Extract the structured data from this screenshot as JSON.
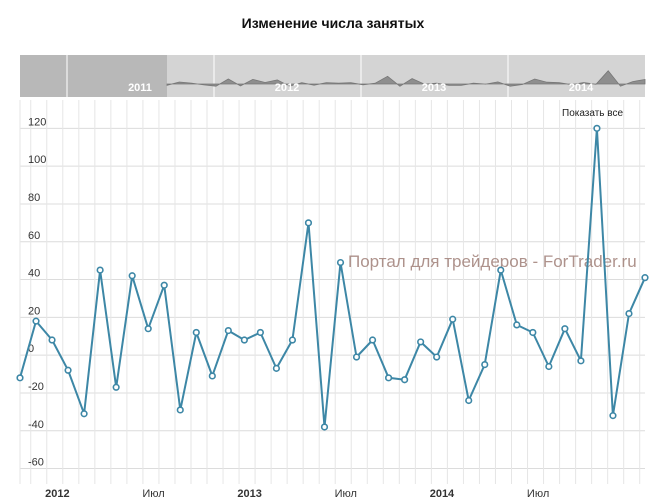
{
  "chart_data": {
    "type": "line",
    "title": "Изменение числа занятых",
    "y_ticks": [
      -60,
      -40,
      -20,
      0,
      20,
      40,
      60,
      80,
      100,
      120
    ],
    "ylim": [
      -65,
      135
    ],
    "x_ticks": [
      {
        "label": "2012",
        "bold": true
      },
      {
        "label": "Июл",
        "bold": false
      },
      {
        "label": "2013",
        "bold": true
      },
      {
        "label": "Июл",
        "bold": false
      },
      {
        "label": "2014",
        "bold": true
      },
      {
        "label": "Июл",
        "bold": false
      }
    ],
    "series": [
      {
        "values": [
          -12,
          18,
          8,
          -8,
          -31,
          45,
          -17,
          42,
          14,
          37,
          -29,
          12,
          -11,
          13,
          8,
          12,
          -7,
          8,
          70,
          -38,
          49,
          -1,
          8,
          -12,
          -13,
          7,
          -1,
          19,
          -24,
          -5,
          45,
          16,
          12,
          -6,
          14,
          -3,
          120,
          -32,
          22,
          41
        ]
      }
    ],
    "grid": true
  },
  "navigator": {
    "years": [
      "2011",
      "2012",
      "2013",
      "2014"
    ]
  },
  "watermark": "Портал для трейдеров - ForTrader.ru",
  "show_all_button": "Показать все",
  "colors": {
    "series": "#3d87a6",
    "navigator_bg": "#d4d4d4",
    "navigator_mask": "#b8b8b8"
  }
}
